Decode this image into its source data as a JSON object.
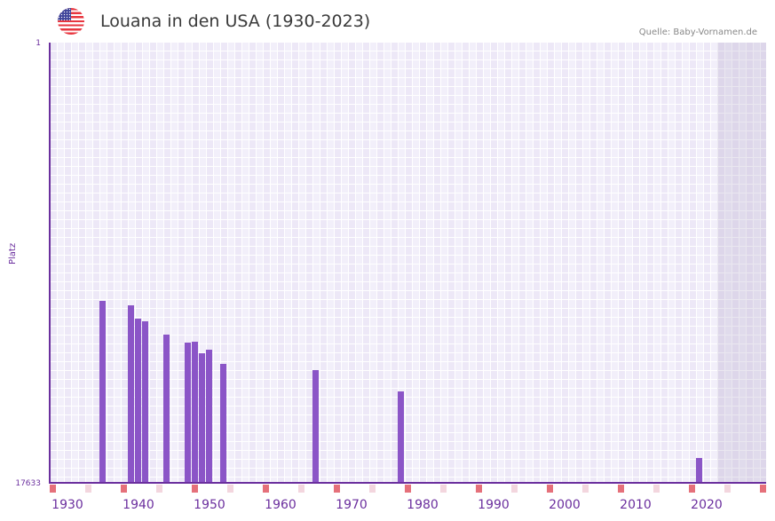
{
  "header": {
    "flag_icon": "us-flag-icon",
    "title": "Louana in den USA (1930-2023)",
    "source": "Quelle: Baby-Vornamen.de"
  },
  "axis": {
    "y_title": "Platz",
    "y_top_label": "1",
    "y_bottom_label": "17633"
  },
  "colors": {
    "bar": "#8b55c7",
    "axis": "#6b2f9e",
    "marker_decade": "#e5707a",
    "marker_half": "#f3d6de"
  },
  "chart_data": {
    "type": "bar",
    "title": "Louana in den USA (1930-2023)",
    "xlabel": "",
    "ylabel": "Platz",
    "ylim": [
      17633,
      1
    ],
    "y_inverted": true,
    "x_range": [
      1928,
      2028
    ],
    "x_ticks": [
      1930,
      1940,
      1950,
      1960,
      1970,
      1980,
      1990,
      2000,
      2010,
      2020
    ],
    "shaded_range": [
      2022,
      2028
    ],
    "grid": true,
    "legend": null,
    "categories": [
      1935,
      1939,
      1940,
      1941,
      1944,
      1947,
      1948,
      1949,
      1950,
      1952,
      1965,
      1977,
      2019
    ],
    "values": [
      10360,
      10537,
      11070,
      11176,
      11708,
      12027,
      11992,
      12453,
      12311,
      12879,
      13127,
      14014,
      16675
    ]
  }
}
